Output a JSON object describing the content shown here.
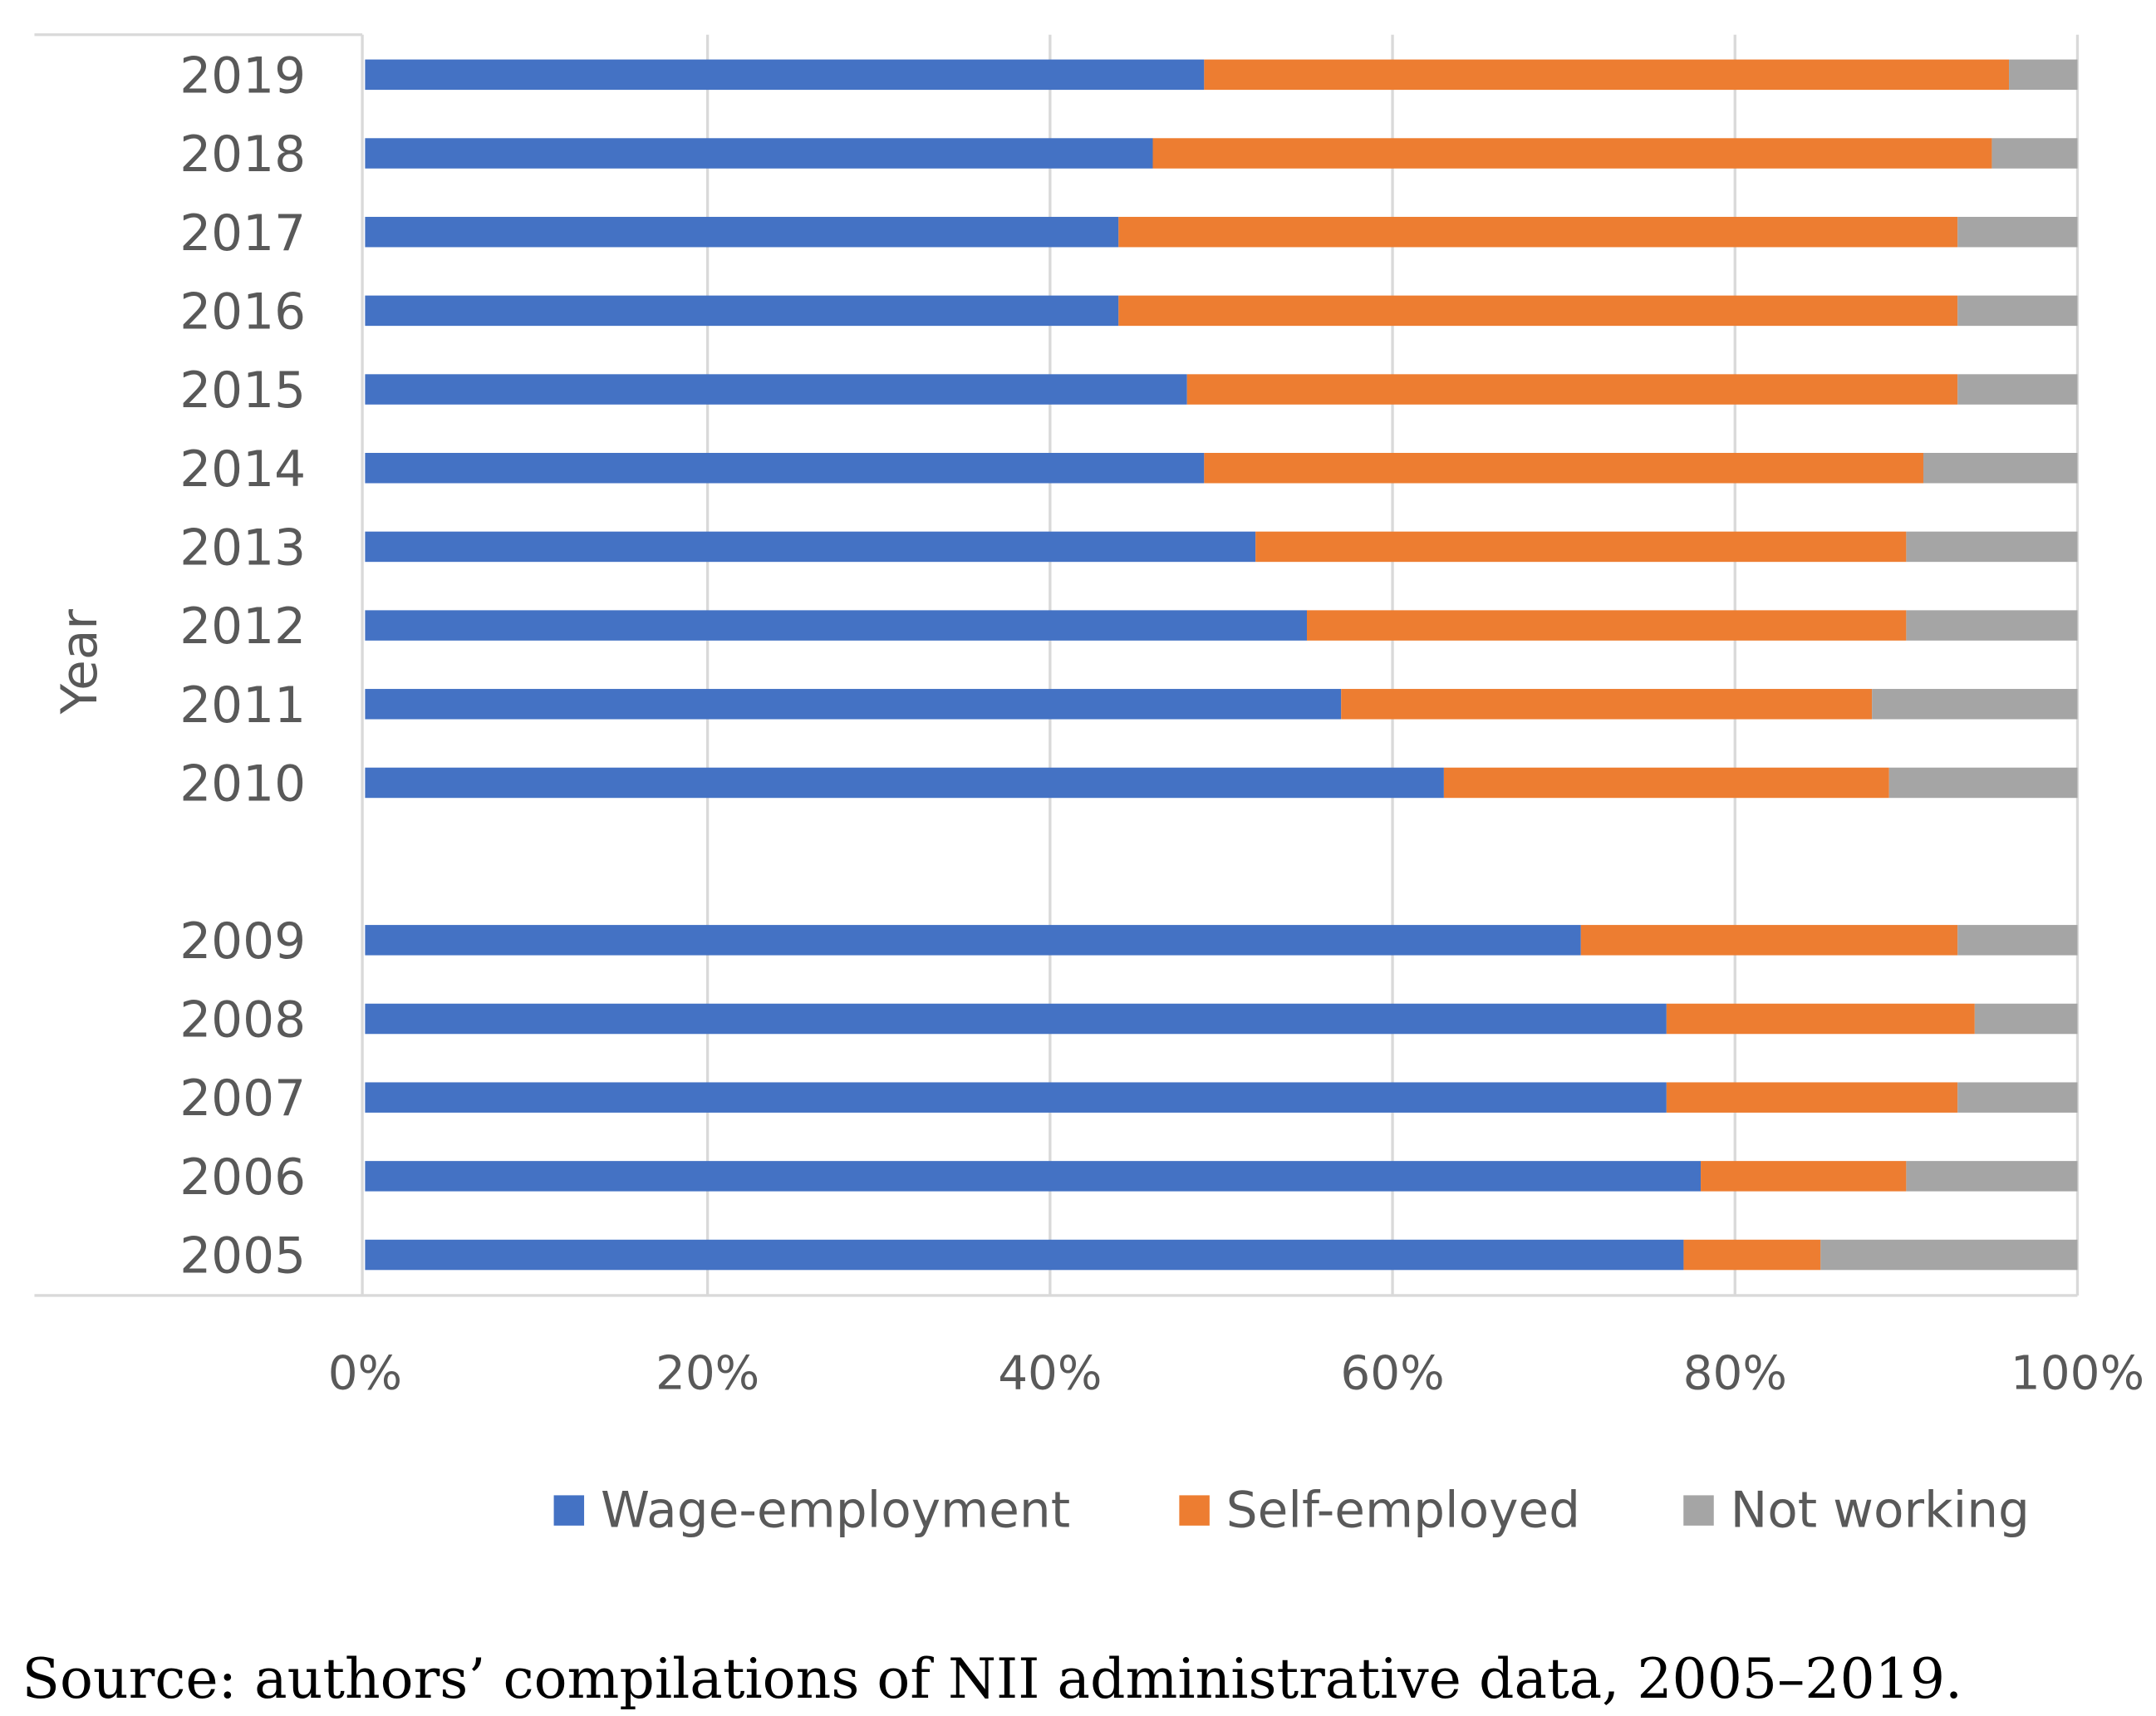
{
  "chart_data": {
    "type": "bar",
    "orientation": "horizontal",
    "stacked": "percent",
    "title": "",
    "ylabel": "Year",
    "xlabel": "",
    "xlim": [
      0,
      100
    ],
    "x_ticks": [
      "0%",
      "20%",
      "40%",
      "60%",
      "80%",
      "100%"
    ],
    "grid": true,
    "legend_position": "bottom",
    "categories": [
      "2019",
      "2018",
      "2017",
      "2016",
      "2015",
      "2014",
      "2013",
      "2012",
      "2011",
      "2010",
      "",
      "2009",
      "2008",
      "2007",
      "2006",
      "2005"
    ],
    "series": [
      {
        "name": "Wage-employment",
        "color": "#4472C4",
        "values": [
          49,
          46,
          44,
          44,
          48,
          49,
          52,
          55,
          57,
          63,
          null,
          71,
          76,
          76,
          78,
          77
        ]
      },
      {
        "name": "Self-employed",
        "color": "#ED7D31",
        "values": [
          47,
          49,
          49,
          49,
          45,
          42,
          38,
          35,
          31,
          26,
          null,
          22,
          18,
          17,
          12,
          8
        ]
      },
      {
        "name": "Not working",
        "color": "#A5A5A5",
        "values": [
          4,
          5,
          7,
          7,
          7,
          9,
          10,
          10,
          12,
          11,
          null,
          7,
          6,
          7,
          10,
          15
        ]
      }
    ]
  },
  "source_note": "Source: authors’ compilations of NII administrative data, 2005–2019."
}
